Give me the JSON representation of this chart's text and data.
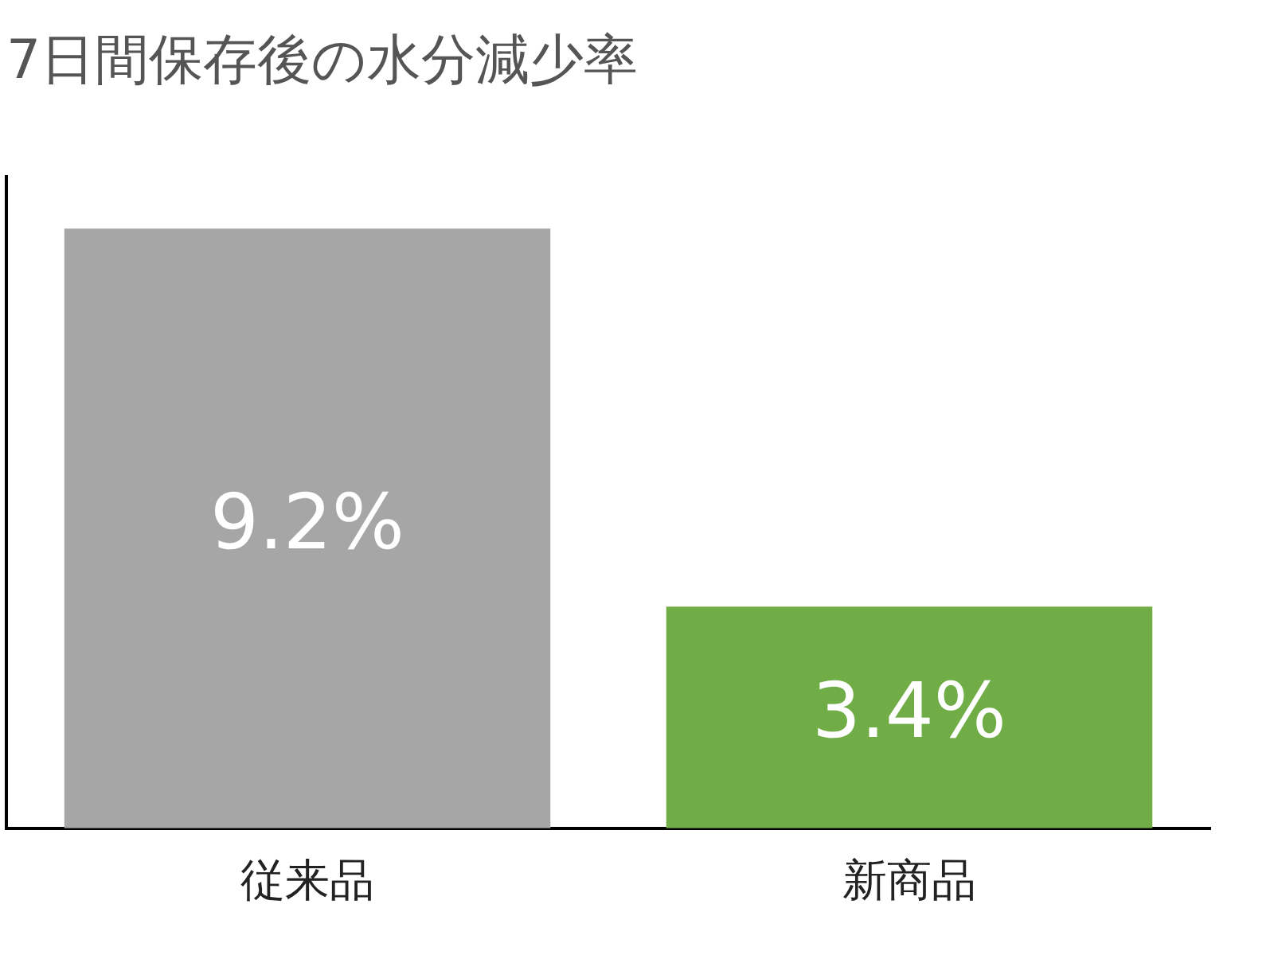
{
  "chart_data": {
    "type": "bar",
    "title": "7日間保存後の水分減少率",
    "categories": [
      "従来品",
      "新商品"
    ],
    "values": [
      9.2,
      3.4
    ],
    "colors": [
      "#a6a6a6",
      "#70ad47"
    ],
    "value_labels": [
      "9.2%",
      "3.4%"
    ],
    "tick_labels": "x",
    "grid": false,
    "legend": false
  }
}
